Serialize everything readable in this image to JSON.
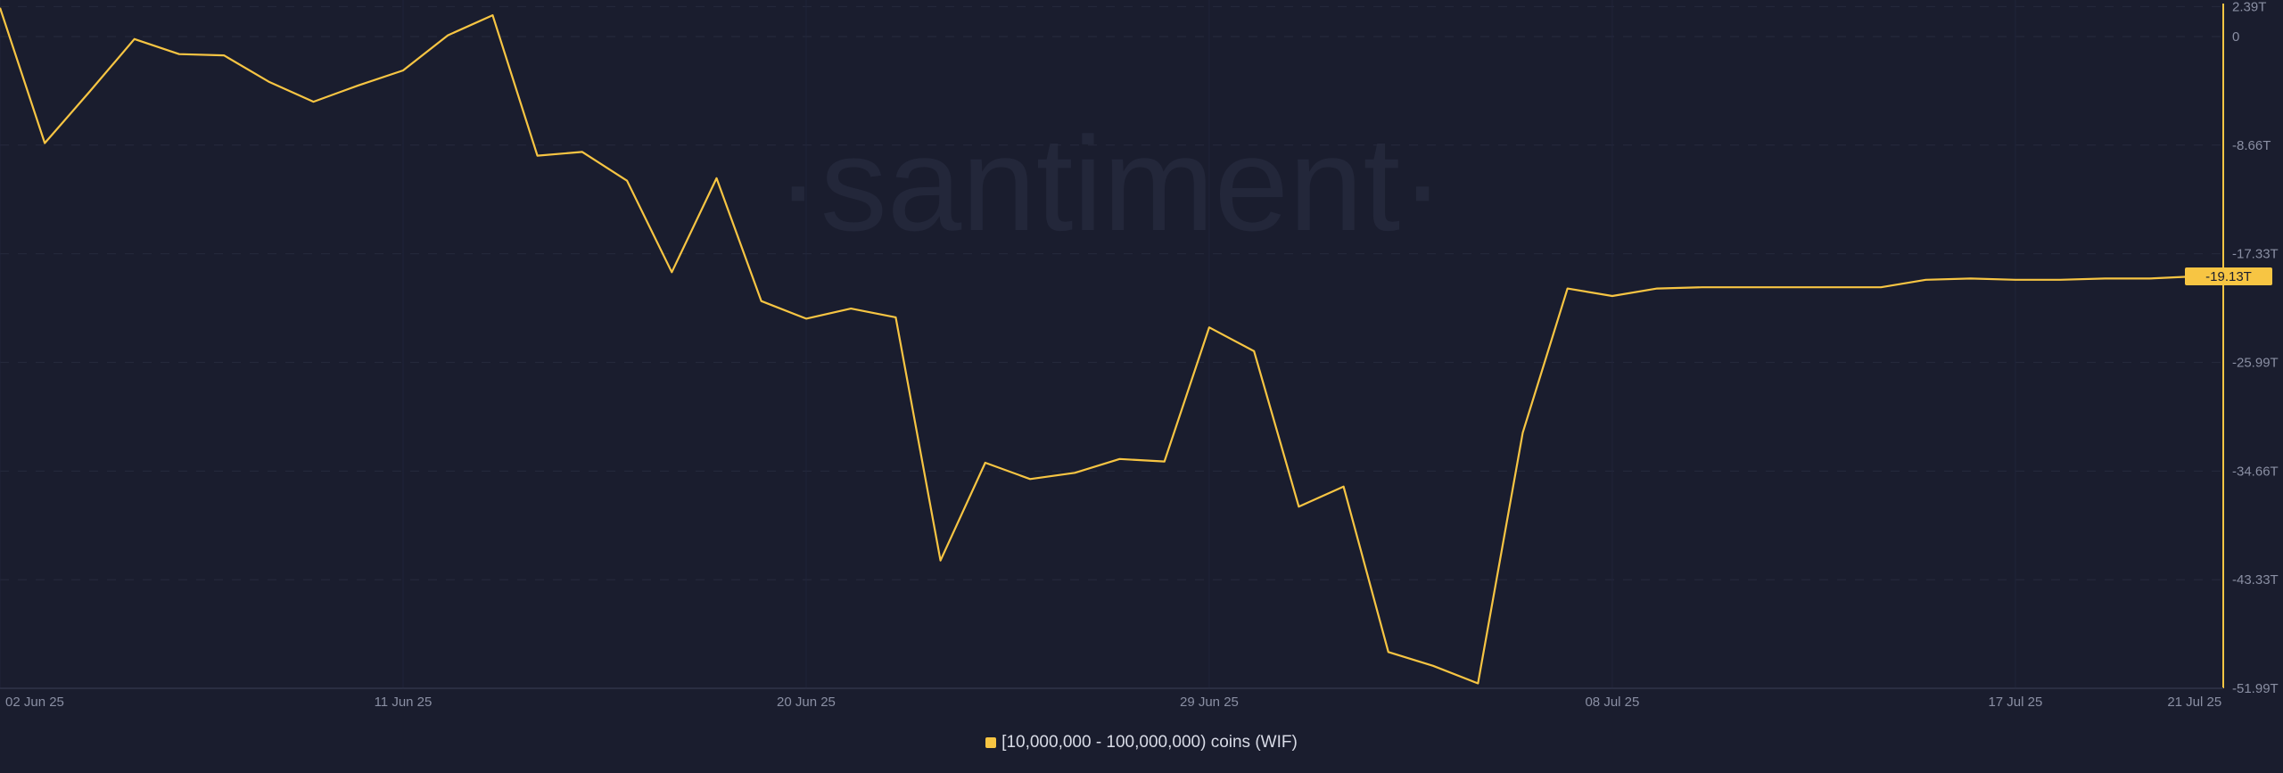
{
  "chart_data": {
    "type": "line",
    "title": "",
    "xlabel": "",
    "ylabel": "",
    "watermark": "·santiment·",
    "x_ticks": [
      "02 Jun 25",
      "11 Jun 25",
      "20 Jun 25",
      "29 Jun 25",
      "08 Jul 25",
      "17 Jul 25",
      "21 Jul 25"
    ],
    "y_ticks": [
      "2.39T",
      "0",
      "-8.66T",
      "-17.33T",
      "-25.99T",
      "-34.66T",
      "-43.33T",
      "-51.99T"
    ],
    "ylim": [
      -51.99,
      2.39
    ],
    "y_unit": "T",
    "grid": true,
    "legend_position": "bottom-center",
    "current_value_label": "-19.13T",
    "x_start": "2025-06-02",
    "x_end": "2025-07-21",
    "series": [
      {
        "name": "[10,000,000 - 100,000,000) coins (WIF)",
        "color": "#f7c543",
        "x": [
          "2025-06-02",
          "2025-06-03",
          "2025-06-04",
          "2025-06-05",
          "2025-06-06",
          "2025-06-07",
          "2025-06-08",
          "2025-06-09",
          "2025-06-10",
          "2025-06-11",
          "2025-06-12",
          "2025-06-13",
          "2025-06-14",
          "2025-06-15",
          "2025-06-16",
          "2025-06-17",
          "2025-06-18",
          "2025-06-19",
          "2025-06-20",
          "2025-06-21",
          "2025-06-22",
          "2025-06-23",
          "2025-06-24",
          "2025-06-25",
          "2025-06-26",
          "2025-06-27",
          "2025-06-28",
          "2025-06-29",
          "2025-06-30",
          "2025-07-01",
          "2025-07-02",
          "2025-07-03",
          "2025-07-04",
          "2025-07-05",
          "2025-07-06",
          "2025-07-07",
          "2025-07-08",
          "2025-07-09",
          "2025-07-10",
          "2025-07-11",
          "2025-07-12",
          "2025-07-13",
          "2025-07-14",
          "2025-07-15",
          "2025-07-16",
          "2025-07-17",
          "2025-07-18",
          "2025-07-19",
          "2025-07-20",
          "2025-07-21"
        ],
        "values": [
          2.3,
          -8.5,
          -4.4,
          -0.2,
          -1.4,
          -1.5,
          -3.6,
          -5.2,
          -3.9,
          -2.7,
          0.1,
          1.7,
          -9.5,
          -9.2,
          -11.5,
          -18.8,
          -11.3,
          -21.1,
          -22.5,
          -21.7,
          -22.4,
          -41.8,
          -34.0,
          -35.3,
          -34.8,
          -33.7,
          -33.9,
          -23.2,
          -25.1,
          -37.5,
          -35.9,
          -49.1,
          -50.2,
          -51.6,
          -31.6,
          -20.1,
          -20.7,
          -20.1,
          -20.0,
          -20.0,
          -20.0,
          -20.0,
          -20.0,
          -19.4,
          -19.3,
          -19.4,
          -19.4,
          -19.3,
          -19.3,
          -19.13
        ]
      }
    ]
  }
}
